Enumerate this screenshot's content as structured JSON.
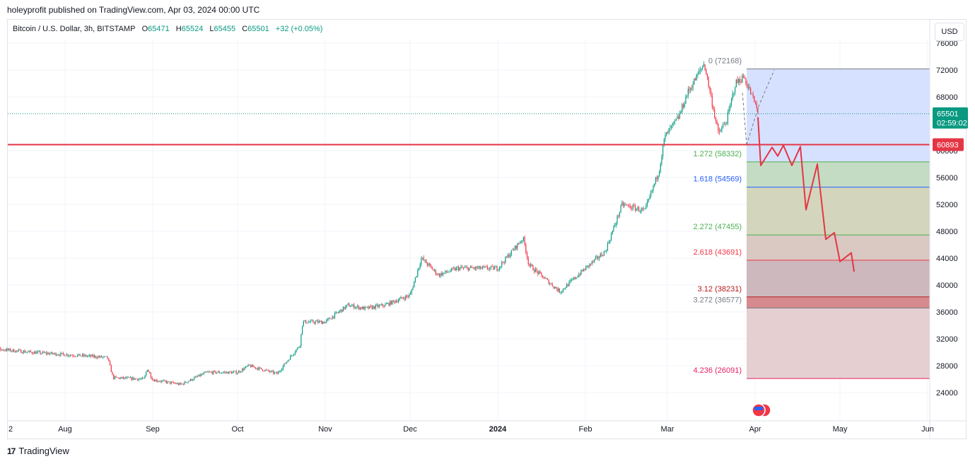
{
  "header": {
    "publisher_line": "holeyprofit published on TradingView.com, Apr 03, 2024 00:00 UTC"
  },
  "legend": {
    "symbol": "Bitcoin / U.S. Dollar, 3h, BITSTAMP",
    "o_label": "O",
    "o_value": "65471",
    "h_label": "H",
    "h_value": "65524",
    "l_label": "L",
    "l_value": "65455",
    "c_label": "C",
    "c_value": "65501",
    "change": "+32 (+0.05%)"
  },
  "currency_button": "USD",
  "footer": {
    "brand": "TradingView"
  },
  "colors": {
    "up": "#089981",
    "down": "#f23645",
    "accent_red": "#e53545",
    "fib_blue": "#2962ff",
    "fib_green": "#4caf50",
    "fib_pink": "#e91e63"
  },
  "chart_data": {
    "type": "candlestick",
    "ylim": [
      22000,
      77000
    ],
    "y_ticks": [
      24000,
      28000,
      32000,
      36000,
      40000,
      44000,
      48000,
      52000,
      56000,
      60000,
      68000,
      72000,
      76000
    ],
    "x_ticks": [
      "2",
      "Aug",
      "Sep",
      "Oct",
      "Nov",
      "Dec",
      "2024",
      "Feb",
      "Mar",
      "Apr",
      "May",
      "Jun"
    ],
    "price_path": [
      {
        "d": "2023-07-02",
        "v": 30700
      },
      {
        "d": "2023-07-20",
        "v": 30000
      },
      {
        "d": "2023-08-10",
        "v": 29400
      },
      {
        "d": "2023-08-16",
        "v": 29200
      },
      {
        "d": "2023-08-18",
        "v": 26200
      },
      {
        "d": "2023-08-29",
        "v": 26000
      },
      {
        "d": "2023-08-30",
        "v": 27600
      },
      {
        "d": "2023-09-01",
        "v": 25900
      },
      {
        "d": "2023-09-11",
        "v": 25200
      },
      {
        "d": "2023-09-20",
        "v": 27000
      },
      {
        "d": "2023-10-01",
        "v": 27000
      },
      {
        "d": "2023-10-05",
        "v": 28000
      },
      {
        "d": "2023-10-15",
        "v": 26800
      },
      {
        "d": "2023-10-20",
        "v": 29500
      },
      {
        "d": "2023-10-23",
        "v": 31000
      },
      {
        "d": "2023-10-24",
        "v": 34500
      },
      {
        "d": "2023-11-01",
        "v": 34500
      },
      {
        "d": "2023-11-09",
        "v": 37000
      },
      {
        "d": "2023-11-15",
        "v": 36500
      },
      {
        "d": "2023-11-22",
        "v": 37000
      },
      {
        "d": "2023-12-01",
        "v": 38500
      },
      {
        "d": "2023-12-05",
        "v": 44000
      },
      {
        "d": "2023-12-11",
        "v": 41500
      },
      {
        "d": "2023-12-18",
        "v": 42500
      },
      {
        "d": "2024-01-01",
        "v": 42500
      },
      {
        "d": "2024-01-03",
        "v": 43500
      },
      {
        "d": "2024-01-10",
        "v": 47000
      },
      {
        "d": "2024-01-12",
        "v": 43000
      },
      {
        "d": "2024-01-23",
        "v": 39000
      },
      {
        "d": "2024-02-01",
        "v": 42500
      },
      {
        "d": "2024-02-08",
        "v": 45000
      },
      {
        "d": "2024-02-14",
        "v": 52000
      },
      {
        "d": "2024-02-22",
        "v": 51000
      },
      {
        "d": "2024-02-27",
        "v": 57000
      },
      {
        "d": "2024-02-29",
        "v": 62000
      },
      {
        "d": "2024-03-05",
        "v": 65000
      },
      {
        "d": "2024-03-08",
        "v": 68500
      },
      {
        "d": "2024-03-14",
        "v": 73000
      },
      {
        "d": "2024-03-19",
        "v": 62500
      },
      {
        "d": "2024-03-22",
        "v": 64500
      },
      {
        "d": "2024-03-25",
        "v": 70000
      },
      {
        "d": "2024-03-28",
        "v": 71000
      },
      {
        "d": "2024-04-01",
        "v": 67000
      },
      {
        "d": "2024-04-02",
        "v": 65501
      }
    ],
    "current_price": {
      "value": "65501",
      "countdown": "02:59:02"
    },
    "horizontal_line": {
      "value": 60893,
      "label": "60893"
    },
    "fib_extension": {
      "top_label": "0 (72168)",
      "levels": [
        {
          "ratio": "1.272",
          "price": 58332,
          "text": "1.272 (58332)",
          "color": "#4caf50",
          "fill": "#b9e3c3"
        },
        {
          "ratio": "1.618",
          "price": 54569,
          "text": "1.618 (54569)",
          "color": "#2962ff",
          "fill": "#c5dcc4"
        },
        {
          "ratio": "2.272",
          "price": 47455,
          "text": "2.272 (47455)",
          "color": "#4caf50",
          "fill": "#d3d6bc"
        },
        {
          "ratio": "2.618",
          "price": 43691,
          "text": "2.618 (43691)",
          "color": "#f23645",
          "fill": "#d9c9c2"
        },
        {
          "ratio": "3.12",
          "price": 38231,
          "text": "3.12 (38231)",
          "color": "#b71c1c",
          "fill": "#ccb8bd"
        },
        {
          "ratio": "3.272",
          "price": 36577,
          "text": "3.272 (36577)",
          "color": "#787b86",
          "fill": "#d68a8e"
        },
        {
          "ratio": "4.236",
          "price": 26091,
          "text": "4.236 (26091)",
          "color": "#e91e63",
          "fill": "#e5cfd1"
        }
      ]
    },
    "projection_path": [
      {
        "d": "2024-04-02",
        "v": 65000
      },
      {
        "d": "2024-04-03",
        "v": 57800
      },
      {
        "d": "2024-04-07",
        "v": 60500
      },
      {
        "d": "2024-04-09",
        "v": 59200
      },
      {
        "d": "2024-04-11",
        "v": 60800
      },
      {
        "d": "2024-04-14",
        "v": 57800
      },
      {
        "d": "2024-04-17",
        "v": 60600
      },
      {
        "d": "2024-04-19",
        "v": 51200
      },
      {
        "d": "2024-04-23",
        "v": 58000
      },
      {
        "d": "2024-04-26",
        "v": 46800
      },
      {
        "d": "2024-04-29",
        "v": 47800
      },
      {
        "d": "2024-05-01",
        "v": 43500
      },
      {
        "d": "2024-05-05",
        "v": 44800
      },
      {
        "d": "2024-05-06",
        "v": 42000
      }
    ]
  }
}
